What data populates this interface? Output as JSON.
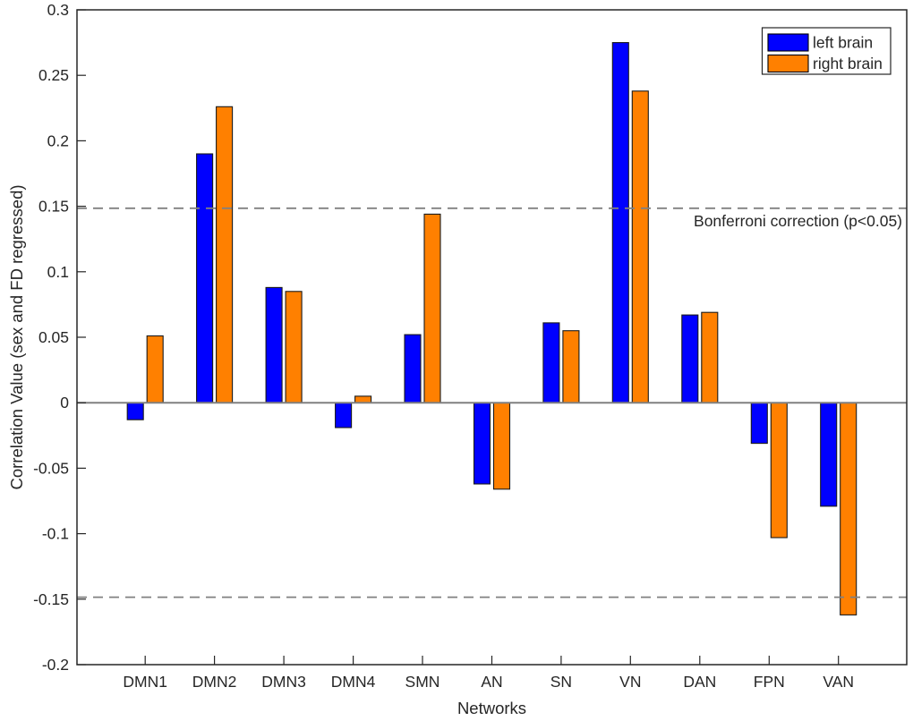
{
  "chart_data": {
    "type": "bar",
    "title": "",
    "xlabel": "Networks",
    "ylabel": "Correlation Value (sex and FD regressed)",
    "categories": [
      "DMN1",
      "DMN2",
      "DMN3",
      "DMN4",
      "SMN",
      "AN",
      "SN",
      "VN",
      "DAN",
      "FPN",
      "VAN"
    ],
    "series": [
      {
        "name": "left brain",
        "color": "#0000ff",
        "values": [
          -0.013,
          0.19,
          0.088,
          -0.019,
          0.052,
          -0.062,
          0.061,
          0.275,
          0.067,
          -0.031,
          -0.079
        ]
      },
      {
        "name": "right brain",
        "color": "#ff8000",
        "values": [
          0.051,
          0.226,
          0.085,
          0.005,
          0.144,
          -0.066,
          0.055,
          0.238,
          0.069,
          -0.103,
          -0.162
        ]
      }
    ],
    "ylim": [
      -0.2,
      0.3
    ],
    "ytick_step": 0.05,
    "yticks": [
      "0.3",
      "0.25",
      "0.2",
      "0.15",
      "0.1",
      "0.05",
      "0",
      "-0.05",
      "-0.1",
      "-0.15",
      "-0.2"
    ],
    "threshold": {
      "label": "Bonferroni correction (p<0.05)",
      "upper": 0.1485,
      "lower": -0.1485,
      "line_color": "#808080",
      "line_style": "dashed"
    },
    "zero_line": true,
    "zero_line_color": "#808080",
    "axis_color": "#262626",
    "bar_edge_color": "#1a1a1a",
    "grid": false,
    "legend": {
      "position": "top-right",
      "border": true,
      "background": "#ffffff"
    }
  }
}
